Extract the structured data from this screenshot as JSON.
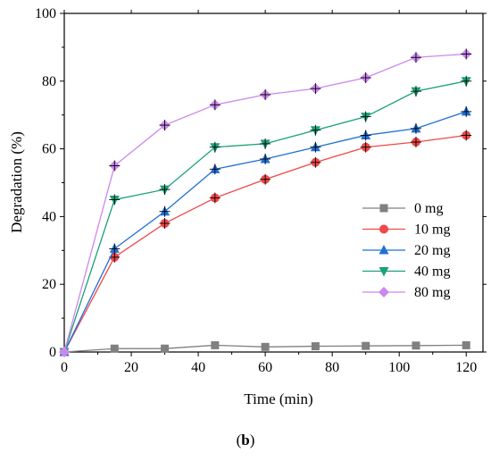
{
  "chart_data": {
    "type": "line",
    "xlabel": "Time (min)",
    "ylabel": "Degradation (%)",
    "xlim": [
      0,
      125
    ],
    "ylim": [
      0,
      100
    ],
    "xticks": [
      0,
      20,
      40,
      60,
      80,
      100,
      120
    ],
    "yticks": [
      0,
      20,
      40,
      60,
      80,
      100
    ],
    "grid": false,
    "legend_position": "center-right",
    "x": [
      0,
      15,
      30,
      45,
      60,
      75,
      90,
      105,
      120
    ],
    "series": [
      {
        "name": "0 mg",
        "marker": "square",
        "color": "#808080",
        "values": [
          0,
          1,
          1,
          2,
          1.5,
          1.7,
          1.8,
          1.9,
          2
        ]
      },
      {
        "name": "10 mg",
        "marker": "circle",
        "color": "#f04848",
        "values": [
          0,
          28,
          38,
          45.5,
          51,
          56,
          60.5,
          62,
          64
        ]
      },
      {
        "name": "20 mg",
        "marker": "triangle-up",
        "color": "#1f6fd6",
        "values": [
          0,
          30.5,
          41.5,
          54,
          57,
          60.5,
          64,
          66,
          71
        ]
      },
      {
        "name": "40 mg",
        "marker": "triangle-down",
        "color": "#1aa07a",
        "values": [
          0,
          45,
          48,
          60.5,
          61.5,
          65.5,
          69.5,
          77,
          80
        ]
      },
      {
        "name": "80 mg",
        "marker": "diamond",
        "color": "#cc88ee",
        "values": [
          0,
          55,
          67,
          73,
          76,
          77.8,
          81,
          87,
          88
        ]
      }
    ]
  },
  "caption": {
    "open": "(",
    "label": "b",
    "close": ")"
  }
}
